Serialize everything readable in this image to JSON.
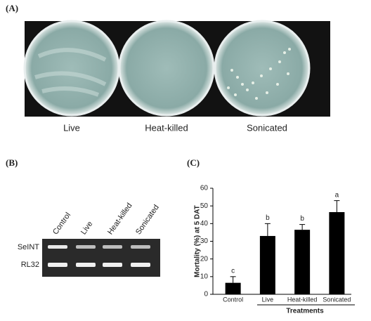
{
  "panel_a": {
    "label": "(A)",
    "plates": [
      "Live",
      "Heat-killed",
      "Sonicated"
    ]
  },
  "panel_b": {
    "label": "(B)",
    "lanes": [
      "Control",
      "Live",
      "Heat-killed",
      "Sonicated"
    ],
    "rows": [
      "SeINT",
      "RL32"
    ]
  },
  "panel_c": {
    "label": "(C)"
  },
  "chart_data": {
    "type": "bar",
    "categories": [
      "Control",
      "Live",
      "Heat-killed",
      "Sonicated"
    ],
    "values": [
      6.5,
      33,
      36.5,
      46.5
    ],
    "errors": [
      3.5,
      7,
      3,
      6.5
    ],
    "annotations": [
      "c",
      "b",
      "b",
      "a"
    ],
    "color": "#000000",
    "ylabel": "Mortality (%) at 5 DAT",
    "xlabel": "Treatments",
    "ylim": [
      0,
      60
    ],
    "yticks": [
      0,
      10,
      20,
      30,
      40,
      50,
      60
    ]
  }
}
